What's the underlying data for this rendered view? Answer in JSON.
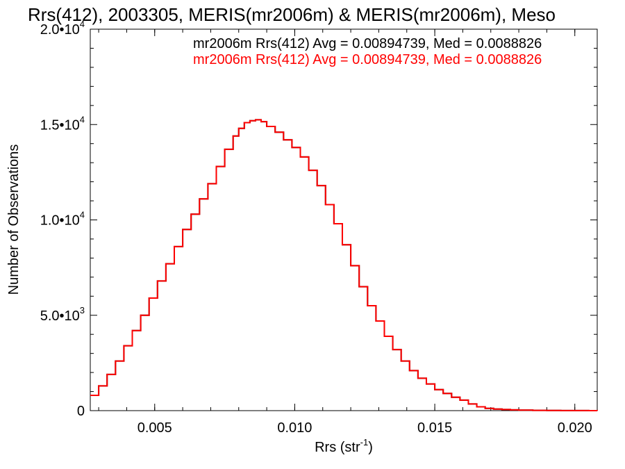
{
  "chart_data": {
    "type": "line",
    "title": "Rrs(412), 2003305, MERIS(mr2006m) & MERIS(mr2006m), Meso",
    "xlabel": "Rrs (str",
    "xlabel_sup": "-1",
    "xlabel_close": ")",
    "ylabel": "Number of Observations",
    "xlim": [
      0.0027,
      0.0208
    ],
    "ylim": [
      0,
      20000
    ],
    "x_ticks": [
      {
        "value": 0.005,
        "label": "0.005"
      },
      {
        "value": 0.01,
        "label": "0.010"
      },
      {
        "value": 0.015,
        "label": "0.015"
      },
      {
        "value": 0.02,
        "label": "0.020"
      }
    ],
    "y_ticks": [
      {
        "value": 0,
        "base": "0",
        "exp": ""
      },
      {
        "value": 5000,
        "base": "5.0•10",
        "exp": "3"
      },
      {
        "value": 10000,
        "base": "1.0•10",
        "exp": "4"
      },
      {
        "value": 15000,
        "base": "1.5•10",
        "exp": "4"
      },
      {
        "value": 20000,
        "base": "2.0•10",
        "exp": "4"
      }
    ],
    "grid": false,
    "legend_position": "top-right",
    "series": [
      {
        "name": "mr2006m Rrs(412) Avg = 0.00894739, Med = 0.0088826",
        "color": "#000000",
        "x": [
          0.0027,
          0.003,
          0.0033,
          0.0036,
          0.0039,
          0.0042,
          0.0045,
          0.0048,
          0.0051,
          0.0054,
          0.0057,
          0.006,
          0.0063,
          0.0066,
          0.0069,
          0.0072,
          0.0075,
          0.0078,
          0.008,
          0.0082,
          0.0084,
          0.0086,
          0.0088,
          0.009,
          0.0093,
          0.0096,
          0.0099,
          0.0102,
          0.0105,
          0.0108,
          0.0111,
          0.0114,
          0.0117,
          0.012,
          0.0123,
          0.0126,
          0.0129,
          0.0132,
          0.0135,
          0.0138,
          0.0141,
          0.0144,
          0.0147,
          0.015,
          0.0153,
          0.0156,
          0.0159,
          0.0162,
          0.0165,
          0.0168,
          0.0171,
          0.0174,
          0.0177,
          0.018,
          0.0185,
          0.019,
          0.0195,
          0.02,
          0.0205,
          0.0208
        ],
        "y": [
          800,
          1300,
          1900,
          2600,
          3400,
          4200,
          5000,
          5900,
          6800,
          7700,
          8600,
          9500,
          10300,
          11100,
          11900,
          12800,
          13700,
          14400,
          14800,
          15100,
          15200,
          15250,
          15150,
          14900,
          14600,
          14200,
          13800,
          13300,
          12600,
          11800,
          10800,
          9800,
          8700,
          7600,
          6500,
          5500,
          4700,
          3900,
          3200,
          2600,
          2100,
          1700,
          1400,
          1100,
          900,
          700,
          550,
          350,
          200,
          120,
          80,
          60,
          40,
          25,
          15,
          8,
          5,
          3,
          2,
          1
        ]
      },
      {
        "name": "mr2006m Rrs(412) Avg = 0.00894739, Med = 0.0088826",
        "color": "#ff0000",
        "x": [
          0.0027,
          0.003,
          0.0033,
          0.0036,
          0.0039,
          0.0042,
          0.0045,
          0.0048,
          0.0051,
          0.0054,
          0.0057,
          0.006,
          0.0063,
          0.0066,
          0.0069,
          0.0072,
          0.0075,
          0.0078,
          0.008,
          0.0082,
          0.0084,
          0.0086,
          0.0088,
          0.009,
          0.0093,
          0.0096,
          0.0099,
          0.0102,
          0.0105,
          0.0108,
          0.0111,
          0.0114,
          0.0117,
          0.012,
          0.0123,
          0.0126,
          0.0129,
          0.0132,
          0.0135,
          0.0138,
          0.0141,
          0.0144,
          0.0147,
          0.015,
          0.0153,
          0.0156,
          0.0159,
          0.0162,
          0.0165,
          0.0168,
          0.0171,
          0.0174,
          0.0177,
          0.018,
          0.0185,
          0.019,
          0.0195,
          0.02,
          0.0205,
          0.0208
        ],
        "y": [
          800,
          1300,
          1900,
          2600,
          3400,
          4200,
          5000,
          5900,
          6800,
          7700,
          8600,
          9500,
          10300,
          11100,
          11900,
          12800,
          13700,
          14400,
          14800,
          15100,
          15200,
          15250,
          15150,
          14900,
          14600,
          14200,
          13800,
          13300,
          12600,
          11800,
          10800,
          9800,
          8700,
          7600,
          6500,
          5500,
          4700,
          3900,
          3200,
          2600,
          2100,
          1700,
          1400,
          1100,
          900,
          700,
          550,
          350,
          200,
          120,
          80,
          60,
          40,
          25,
          15,
          8,
          5,
          3,
          2,
          1
        ]
      }
    ]
  }
}
